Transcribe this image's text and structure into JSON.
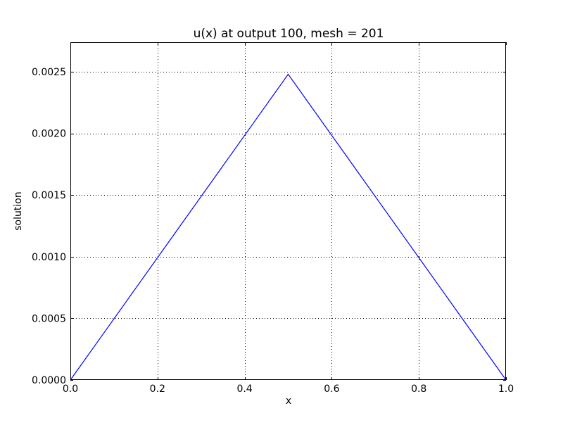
{
  "chart_data": {
    "type": "line",
    "title": "u(x) at output 100, mesh = 201",
    "xlabel": "x",
    "ylabel": "solution",
    "xlim": [
      0.0,
      1.0
    ],
    "ylim": [
      0.0,
      0.00274
    ],
    "x_ticks": [
      0.0,
      0.2,
      0.4,
      0.6,
      0.8,
      1.0
    ],
    "x_tick_labels": [
      "0.0",
      "0.2",
      "0.4",
      "0.6",
      "0.8",
      "1.0"
    ],
    "y_ticks": [
      0.0,
      0.0005,
      0.001,
      0.0015,
      0.002,
      0.0025
    ],
    "y_tick_labels": [
      "0.0000",
      "0.0005",
      "0.0010",
      "0.0015",
      "0.0020",
      "0.0025"
    ],
    "grid": true,
    "series": [
      {
        "color": "#0000ff",
        "x": [
          0.0,
          0.5,
          1.0
        ],
        "y": [
          0.0,
          0.00248,
          0.0
        ]
      }
    ]
  }
}
